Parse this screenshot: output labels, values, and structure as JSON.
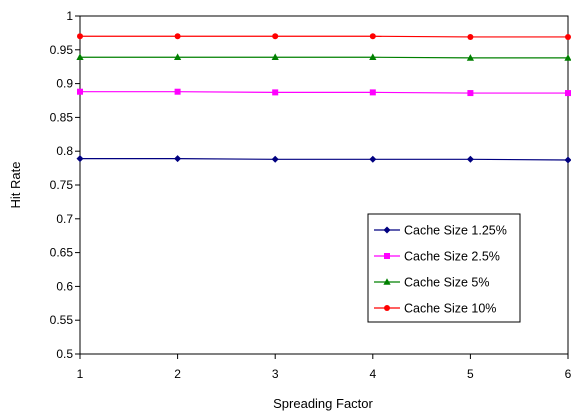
{
  "chart_data": {
    "type": "line",
    "xlabel": "Spreading Factor",
    "ylabel": "Hit Rate",
    "x": [
      1,
      2,
      3,
      4,
      5,
      6
    ],
    "xlim": [
      1,
      6
    ],
    "ylim": [
      0.5,
      1
    ],
    "yticks": [
      "0.5",
      "0.55",
      "0.6",
      "0.65",
      "0.7",
      "0.75",
      "0.8",
      "0.85",
      "0.9",
      "0.95",
      "1"
    ],
    "xticks": [
      "1",
      "2",
      "3",
      "4",
      "5",
      "6"
    ],
    "grid": false,
    "legend_position": "bottom-right",
    "series": [
      {
        "name": "Cache Size 1.25%",
        "color": "#000080",
        "marker": "diamond",
        "values": [
          0.789,
          0.789,
          0.788,
          0.788,
          0.788,
          0.787
        ]
      },
      {
        "name": "Cache Size 2.5%",
        "color": "#ff00ff",
        "marker": "square",
        "values": [
          0.888,
          0.888,
          0.887,
          0.887,
          0.886,
          0.886
        ]
      },
      {
        "name": "Cache Size 5%",
        "color": "#008000",
        "marker": "triangle",
        "values": [
          0.939,
          0.939,
          0.939,
          0.939,
          0.938,
          0.938
        ]
      },
      {
        "name": "Cache Size 10%",
        "color": "#ff0000",
        "marker": "circle",
        "values": [
          0.97,
          0.97,
          0.97,
          0.97,
          0.969,
          0.969
        ]
      }
    ]
  }
}
